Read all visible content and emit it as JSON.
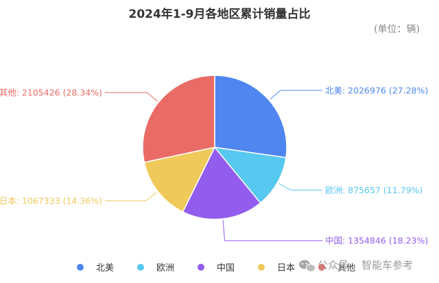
{
  "chart_data": {
    "type": "pie",
    "title": "2024年1-9月各地区累计销量占比",
    "unit_note": "(单位：辆)",
    "start_angle_deg": 0,
    "direction": "clockwise",
    "legend_position": "bottom",
    "slices": [
      {
        "name": "北美",
        "value": 2026976,
        "percent": "27.28%",
        "color": "#4f86f0"
      },
      {
        "name": "欧洲",
        "value": 875657,
        "percent": "11.79%",
        "color": "#57c8f0"
      },
      {
        "name": "中国",
        "value": 1354846,
        "percent": "18.23%",
        "color": "#925def"
      },
      {
        "name": "日本",
        "value": 1067333,
        "percent": "14.36%",
        "color": "#efca5a"
      },
      {
        "name": "其他",
        "value": 2105426,
        "percent": "28.34%",
        "color": "#ea6b66"
      }
    ]
  },
  "watermark": {
    "prefix": "公众号",
    "separator": "·",
    "name": "智能车参考"
  }
}
